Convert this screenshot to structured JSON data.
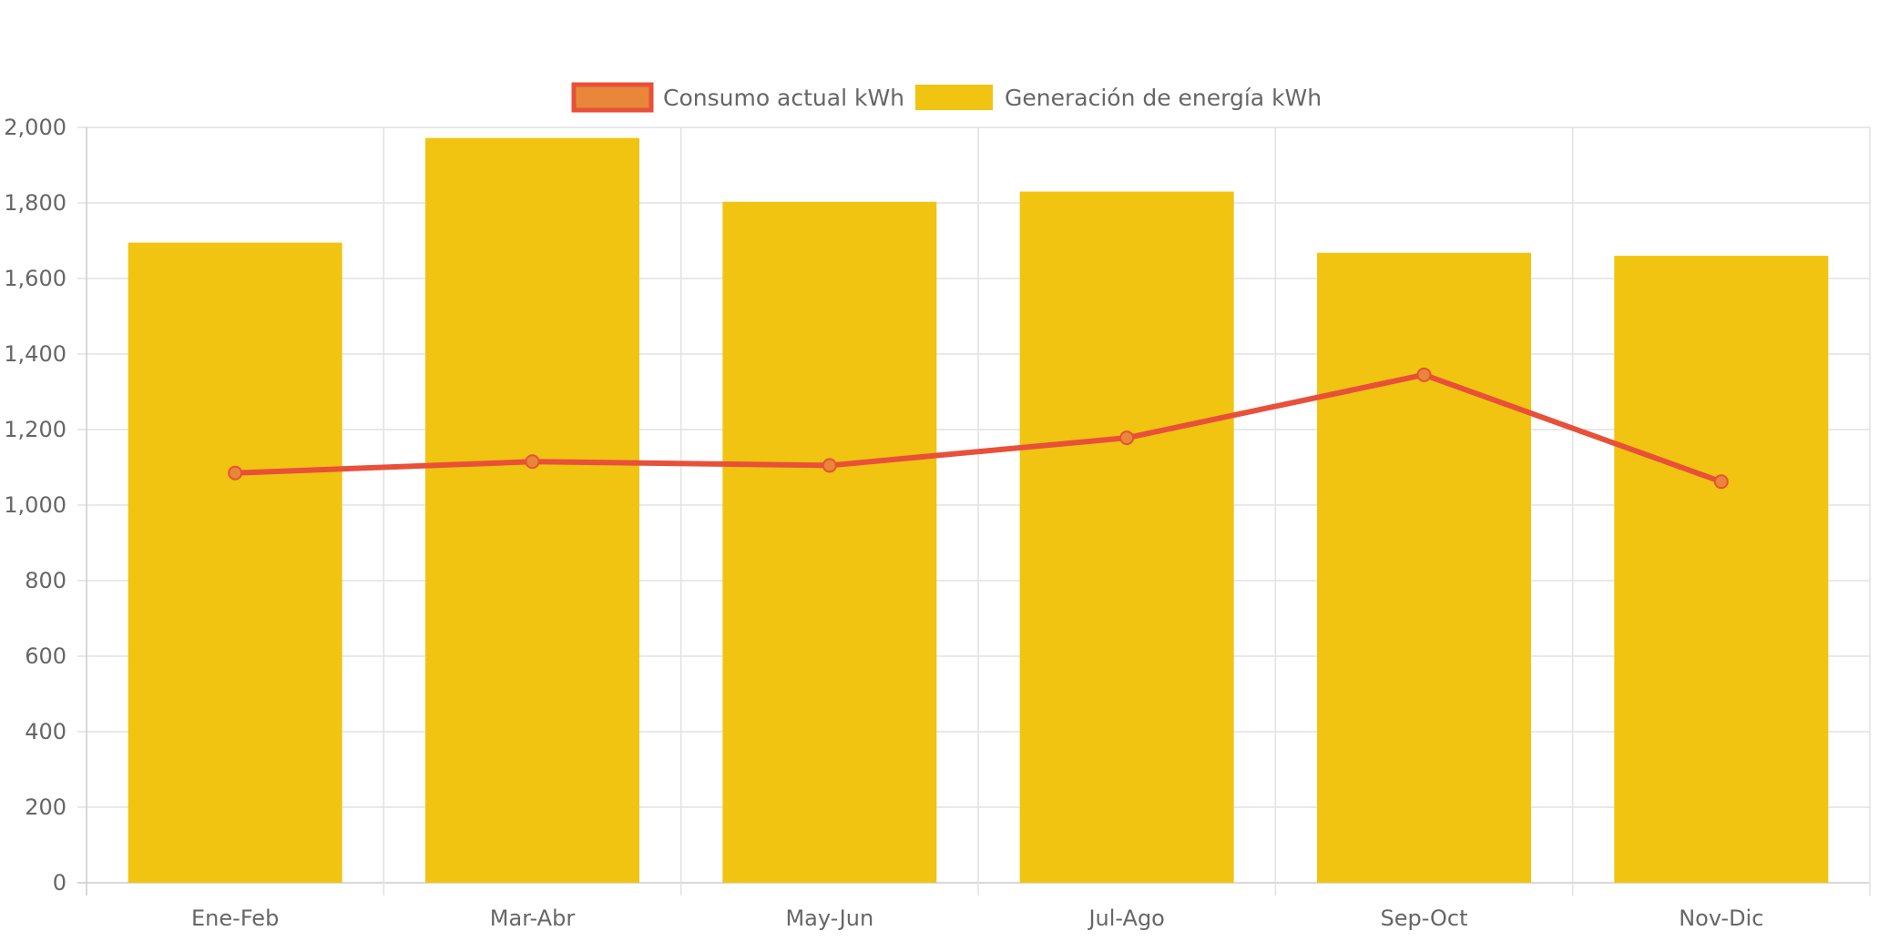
{
  "chart_data": {
    "type": "bar",
    "categories": [
      "Ene-Feb",
      "Mar-Abr",
      "May-Jun",
      "Jul-Ago",
      "Sep-Oct",
      "Nov-Dic"
    ],
    "series": [
      {
        "name": "Consumo actual kWh",
        "type": "line",
        "values": [
          1085,
          1115,
          1105,
          1178,
          1345,
          1062
        ],
        "color": "#e8503a",
        "point_color": "#e8873a"
      },
      {
        "name": "Generación de energía kWh",
        "type": "bar",
        "values": [
          1695,
          1972,
          1803,
          1830,
          1668,
          1660
        ],
        "color": "#f0c410"
      }
    ],
    "ylim": [
      0,
      2000
    ],
    "yticks": [
      0,
      200,
      400,
      600,
      800,
      1000,
      1200,
      1400,
      1600,
      1800,
      2000
    ],
    "ytick_labels": [
      "0",
      "200",
      "400",
      "600",
      "800",
      "1,000",
      "1,200",
      "1,400",
      "1,600",
      "1,800",
      "2,000"
    ],
    "grid": true,
    "legend_position": "top-center",
    "title": "",
    "xlabel": "",
    "ylabel": ""
  }
}
